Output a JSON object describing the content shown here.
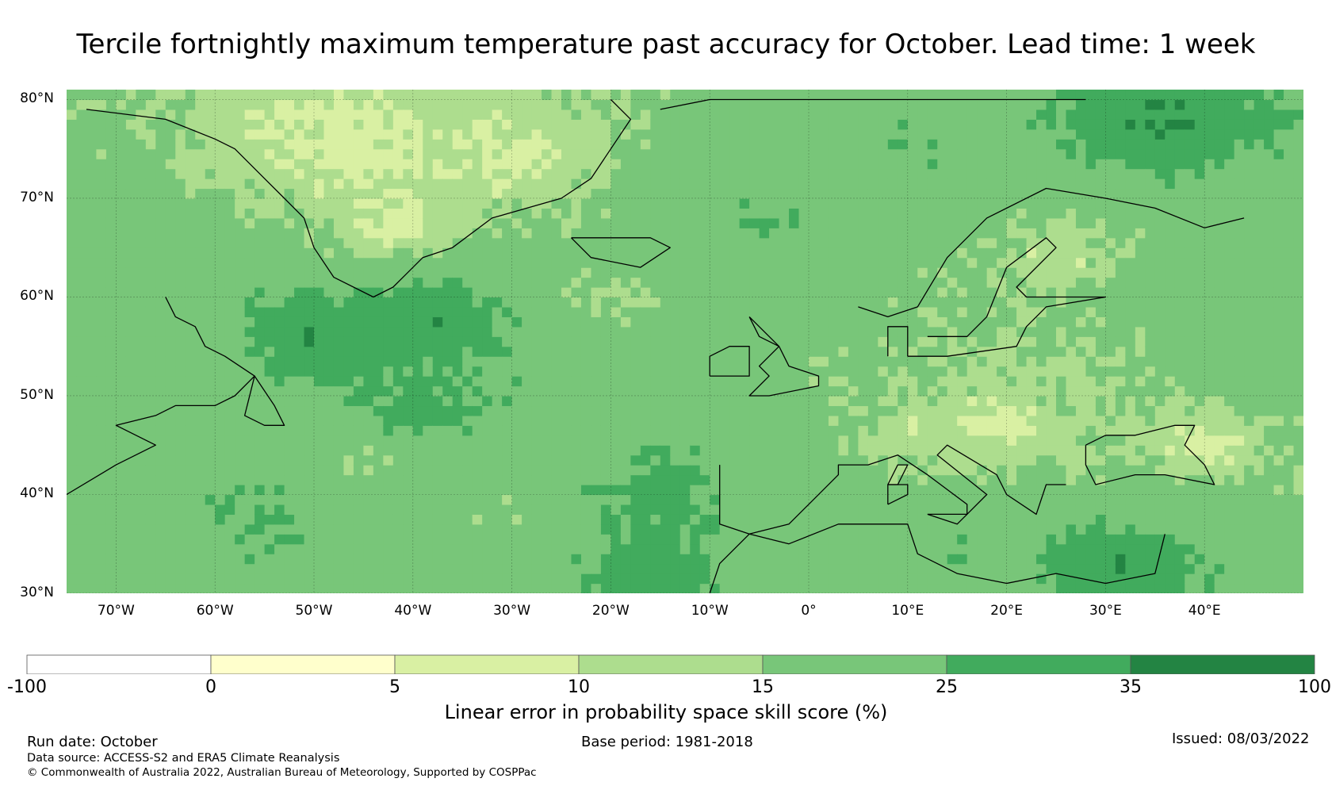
{
  "title": "Tercile fortnightly maximum temperature past accuracy for October. Lead time: 1 week",
  "map": {
    "lon_range": [
      -75,
      50
    ],
    "lat_range": [
      30,
      81
    ],
    "lat_labels": [
      {
        "value": 80,
        "label": "80°N"
      },
      {
        "value": 70,
        "label": "70°N"
      },
      {
        "value": 60,
        "label": "60°N"
      },
      {
        "value": 50,
        "label": "50°N"
      },
      {
        "value": 40,
        "label": "40°N"
      },
      {
        "value": 30,
        "label": "30°N"
      }
    ],
    "lon_labels": [
      {
        "value": -70,
        "label": "70°W"
      },
      {
        "value": -60,
        "label": "60°W"
      },
      {
        "value": -50,
        "label": "50°W"
      },
      {
        "value": -40,
        "label": "40°W"
      },
      {
        "value": -30,
        "label": "30°W"
      },
      {
        "value": -20,
        "label": "20°W"
      },
      {
        "value": -10,
        "label": "10°W"
      },
      {
        "value": 0,
        "label": "0°"
      },
      {
        "value": 10,
        "label": "10°E"
      },
      {
        "value": 20,
        "label": "20°E"
      },
      {
        "value": 30,
        "label": "30°E"
      },
      {
        "value": 40,
        "label": "40°E"
      }
    ],
    "coastlines": [
      [
        [
          -65,
          60
        ],
        [
          -64,
          58
        ],
        [
          -62,
          57
        ],
        [
          -61,
          55
        ],
        [
          -59,
          54
        ],
        [
          -56,
          52
        ],
        [
          -58,
          50
        ],
        [
          -60,
          49
        ],
        [
          -64,
          49
        ],
        [
          -66,
          48
        ],
        [
          -70,
          47
        ],
        [
          -66,
          45
        ],
        [
          -70,
          43
        ],
        [
          -75,
          40
        ]
      ],
      [
        [
          -56,
          52
        ],
        [
          -54,
          49
        ],
        [
          -53,
          47
        ],
        [
          -55,
          47
        ],
        [
          -57,
          48
        ],
        [
          -56,
          52
        ]
      ],
      [
        [
          -73,
          79
        ],
        [
          -65,
          78
        ],
        [
          -60,
          76
        ],
        [
          -58,
          75
        ],
        [
          -55,
          72
        ],
        [
          -53,
          70
        ],
        [
          -51,
          68
        ],
        [
          -50,
          65
        ],
        [
          -48,
          62
        ],
        [
          -44,
          60
        ],
        [
          -42,
          61
        ],
        [
          -39,
          64
        ],
        [
          -36,
          65
        ],
        [
          -32,
          68
        ],
        [
          -25,
          70
        ],
        [
          -22,
          72
        ],
        [
          -20,
          75
        ],
        [
          -18,
          78
        ],
        [
          -20,
          80
        ]
      ],
      [
        [
          -24,
          66
        ],
        [
          -22,
          64
        ],
        [
          -17,
          63
        ],
        [
          -14,
          65
        ],
        [
          -16,
          66
        ],
        [
          -22,
          66
        ],
        [
          -24,
          66
        ]
      ],
      [
        [
          -6,
          58
        ],
        [
          -5,
          56
        ],
        [
          -3,
          55
        ],
        [
          -2,
          53
        ],
        [
          1,
          52
        ],
        [
          1,
          51
        ],
        [
          -4,
          50
        ],
        [
          -6,
          50
        ],
        [
          -4,
          52
        ],
        [
          -5,
          53
        ],
        [
          -3,
          55
        ],
        [
          -6,
          58
        ]
      ],
      [
        [
          -10,
          52
        ],
        [
          -6,
          52
        ],
        [
          -6,
          55
        ],
        [
          -8,
          55
        ],
        [
          -10,
          54
        ],
        [
          -10,
          52
        ]
      ],
      [
        [
          5,
          59
        ],
        [
          8,
          58
        ],
        [
          11,
          59
        ],
        [
          14,
          64
        ],
        [
          18,
          68
        ],
        [
          24,
          71
        ],
        [
          30,
          70
        ],
        [
          35,
          69
        ],
        [
          40,
          67
        ],
        [
          44,
          68
        ]
      ],
      [
        [
          12,
          56
        ],
        [
          16,
          56
        ],
        [
          18,
          58
        ],
        [
          20,
          63
        ],
        [
          24,
          66
        ],
        [
          25,
          65
        ],
        [
          21,
          61
        ],
        [
          22,
          60
        ],
        [
          27,
          60
        ],
        [
          30,
          60
        ],
        [
          24,
          59
        ],
        [
          22,
          57
        ],
        [
          21,
          55
        ],
        [
          14,
          54
        ],
        [
          10,
          54
        ]
      ],
      [
        [
          8,
          54
        ],
        [
          8,
          57
        ],
        [
          10,
          57
        ],
        [
          10,
          54
        ]
      ],
      [
        [
          -9,
          43
        ],
        [
          -9,
          39
        ],
        [
          -9,
          37
        ],
        [
          -6,
          36
        ],
        [
          -2,
          37
        ],
        [
          0,
          39
        ],
        [
          3,
          42
        ],
        [
          3,
          43
        ],
        [
          6,
          43
        ],
        [
          9,
          44
        ],
        [
          12,
          42
        ],
        [
          16,
          39
        ],
        [
          16,
          38
        ],
        [
          18,
          40
        ],
        [
          13,
          44
        ],
        [
          14,
          45
        ],
        [
          19,
          42
        ],
        [
          20,
          40
        ],
        [
          23,
          38
        ],
        [
          24,
          41
        ],
        [
          26,
          41
        ]
      ],
      [
        [
          -10,
          30
        ],
        [
          -9,
          33
        ],
        [
          -6,
          36
        ],
        [
          -2,
          35
        ],
        [
          3,
          37
        ],
        [
          10,
          37
        ],
        [
          11,
          34
        ],
        [
          15,
          32
        ],
        [
          20,
          31
        ],
        [
          25,
          32
        ],
        [
          30,
          31
        ],
        [
          35,
          32
        ],
        [
          36,
          36
        ]
      ],
      [
        [
          28,
          45
        ],
        [
          30,
          46
        ],
        [
          33,
          46
        ],
        [
          37,
          47
        ],
        [
          39,
          47
        ],
        [
          38,
          45
        ],
        [
          40,
          43
        ],
        [
          41,
          41
        ],
        [
          36,
          42
        ],
        [
          33,
          42
        ],
        [
          29,
          41
        ],
        [
          28,
          43
        ],
        [
          28,
          45
        ]
      ],
      [
        [
          8,
          41
        ],
        [
          9,
          41
        ],
        [
          10,
          43
        ],
        [
          9,
          43
        ],
        [
          8,
          41
        ]
      ],
      [
        [
          8,
          39
        ],
        [
          10,
          40
        ],
        [
          10,
          41
        ],
        [
          8,
          41
        ],
        [
          8,
          39
        ]
      ],
      [
        [
          12,
          38
        ],
        [
          16,
          38
        ],
        [
          15,
          37
        ],
        [
          12,
          38
        ]
      ],
      [
        [
          -15,
          79
        ],
        [
          -10,
          80
        ],
        [
          10,
          80
        ],
        [
          20,
          80
        ],
        [
          28,
          80
        ]
      ]
    ],
    "centers": [
      {
        "lon": -45,
        "lat": 74,
        "v": 7
      },
      {
        "lon": -42,
        "lat": 67,
        "v": 7
      },
      {
        "lon": -50,
        "lat": 77,
        "v": 8
      },
      {
        "lon": -30,
        "lat": 74,
        "v": 8
      },
      {
        "lon": -50,
        "lat": 56,
        "v": 36
      },
      {
        "lon": -38,
        "lat": 58,
        "v": 36
      },
      {
        "lon": -40,
        "lat": 48,
        "v": 30
      },
      {
        "lon": -60,
        "lat": 52,
        "v": 20
      },
      {
        "lon": -70,
        "lat": 58,
        "v": 20
      },
      {
        "lon": -70,
        "lat": 35,
        "v": 20
      },
      {
        "lon": -45,
        "lat": 44,
        "v": 12
      },
      {
        "lon": -30,
        "lat": 38,
        "v": 14
      },
      {
        "lon": -15,
        "lat": 40,
        "v": 30
      },
      {
        "lon": -15,
        "lat": 32,
        "v": 34
      },
      {
        "lon": -20,
        "lat": 60,
        "v": 14
      },
      {
        "lon": -5,
        "lat": 67,
        "v": 26
      },
      {
        "lon": 10,
        "lat": 75,
        "v": 24
      },
      {
        "lon": 35,
        "lat": 78,
        "v": 36
      },
      {
        "lon": 15,
        "lat": 62,
        "v": 16
      },
      {
        "lon": 25,
        "lat": 64,
        "v": 10
      },
      {
        "lon": 35,
        "lat": 60,
        "v": 18
      },
      {
        "lon": 25,
        "lat": 52,
        "v": 14
      },
      {
        "lon": 20,
        "lat": 47,
        "v": 6
      },
      {
        "lon": 10,
        "lat": 46,
        "v": 10
      },
      {
        "lon": 5,
        "lat": 52,
        "v": 16
      },
      {
        "lon": 40,
        "lat": 45,
        "v": 8
      },
      {
        "lon": 45,
        "lat": 38,
        "v": 18
      },
      {
        "lon": 32,
        "lat": 33,
        "v": 36
      },
      {
        "lon": 5,
        "lat": 38,
        "v": 20
      },
      {
        "lon": 15,
        "lat": 35,
        "v": 24
      },
      {
        "lon": 0,
        "lat": 30,
        "v": 18
      },
      {
        "lon": -5,
        "lat": 34,
        "v": 20
      },
      {
        "lon": 45,
        "lat": 55,
        "v": 22
      },
      {
        "lon": -65,
        "lat": 45,
        "v": 22
      },
      {
        "lon": -55,
        "lat": 38,
        "v": 26
      }
    ]
  },
  "colorbar": {
    "label": "Linear error in probability space skill score (%)",
    "ticks": [
      "-100",
      "0",
      "5",
      "10",
      "15",
      "25",
      "35",
      "100"
    ],
    "colors": [
      "#ffffff",
      "#ffffcc",
      "#d9f0a3",
      "#addd8e",
      "#78c679",
      "#41ab5d",
      "#238443"
    ],
    "thresholds": [
      0,
      5,
      10,
      15,
      25,
      35
    ]
  },
  "footer": {
    "run_date": "Run date: October",
    "base_period": "Base period: 1981-2018",
    "issued": "Issued: 08/03/2022",
    "data_source": "Data source: ACCESS-S2 and ERA5 Climate Reanalysis",
    "copyright": "© Commonwealth of Australia 2022, Australian Bureau of Meteorology, Supported by COSPPac"
  }
}
